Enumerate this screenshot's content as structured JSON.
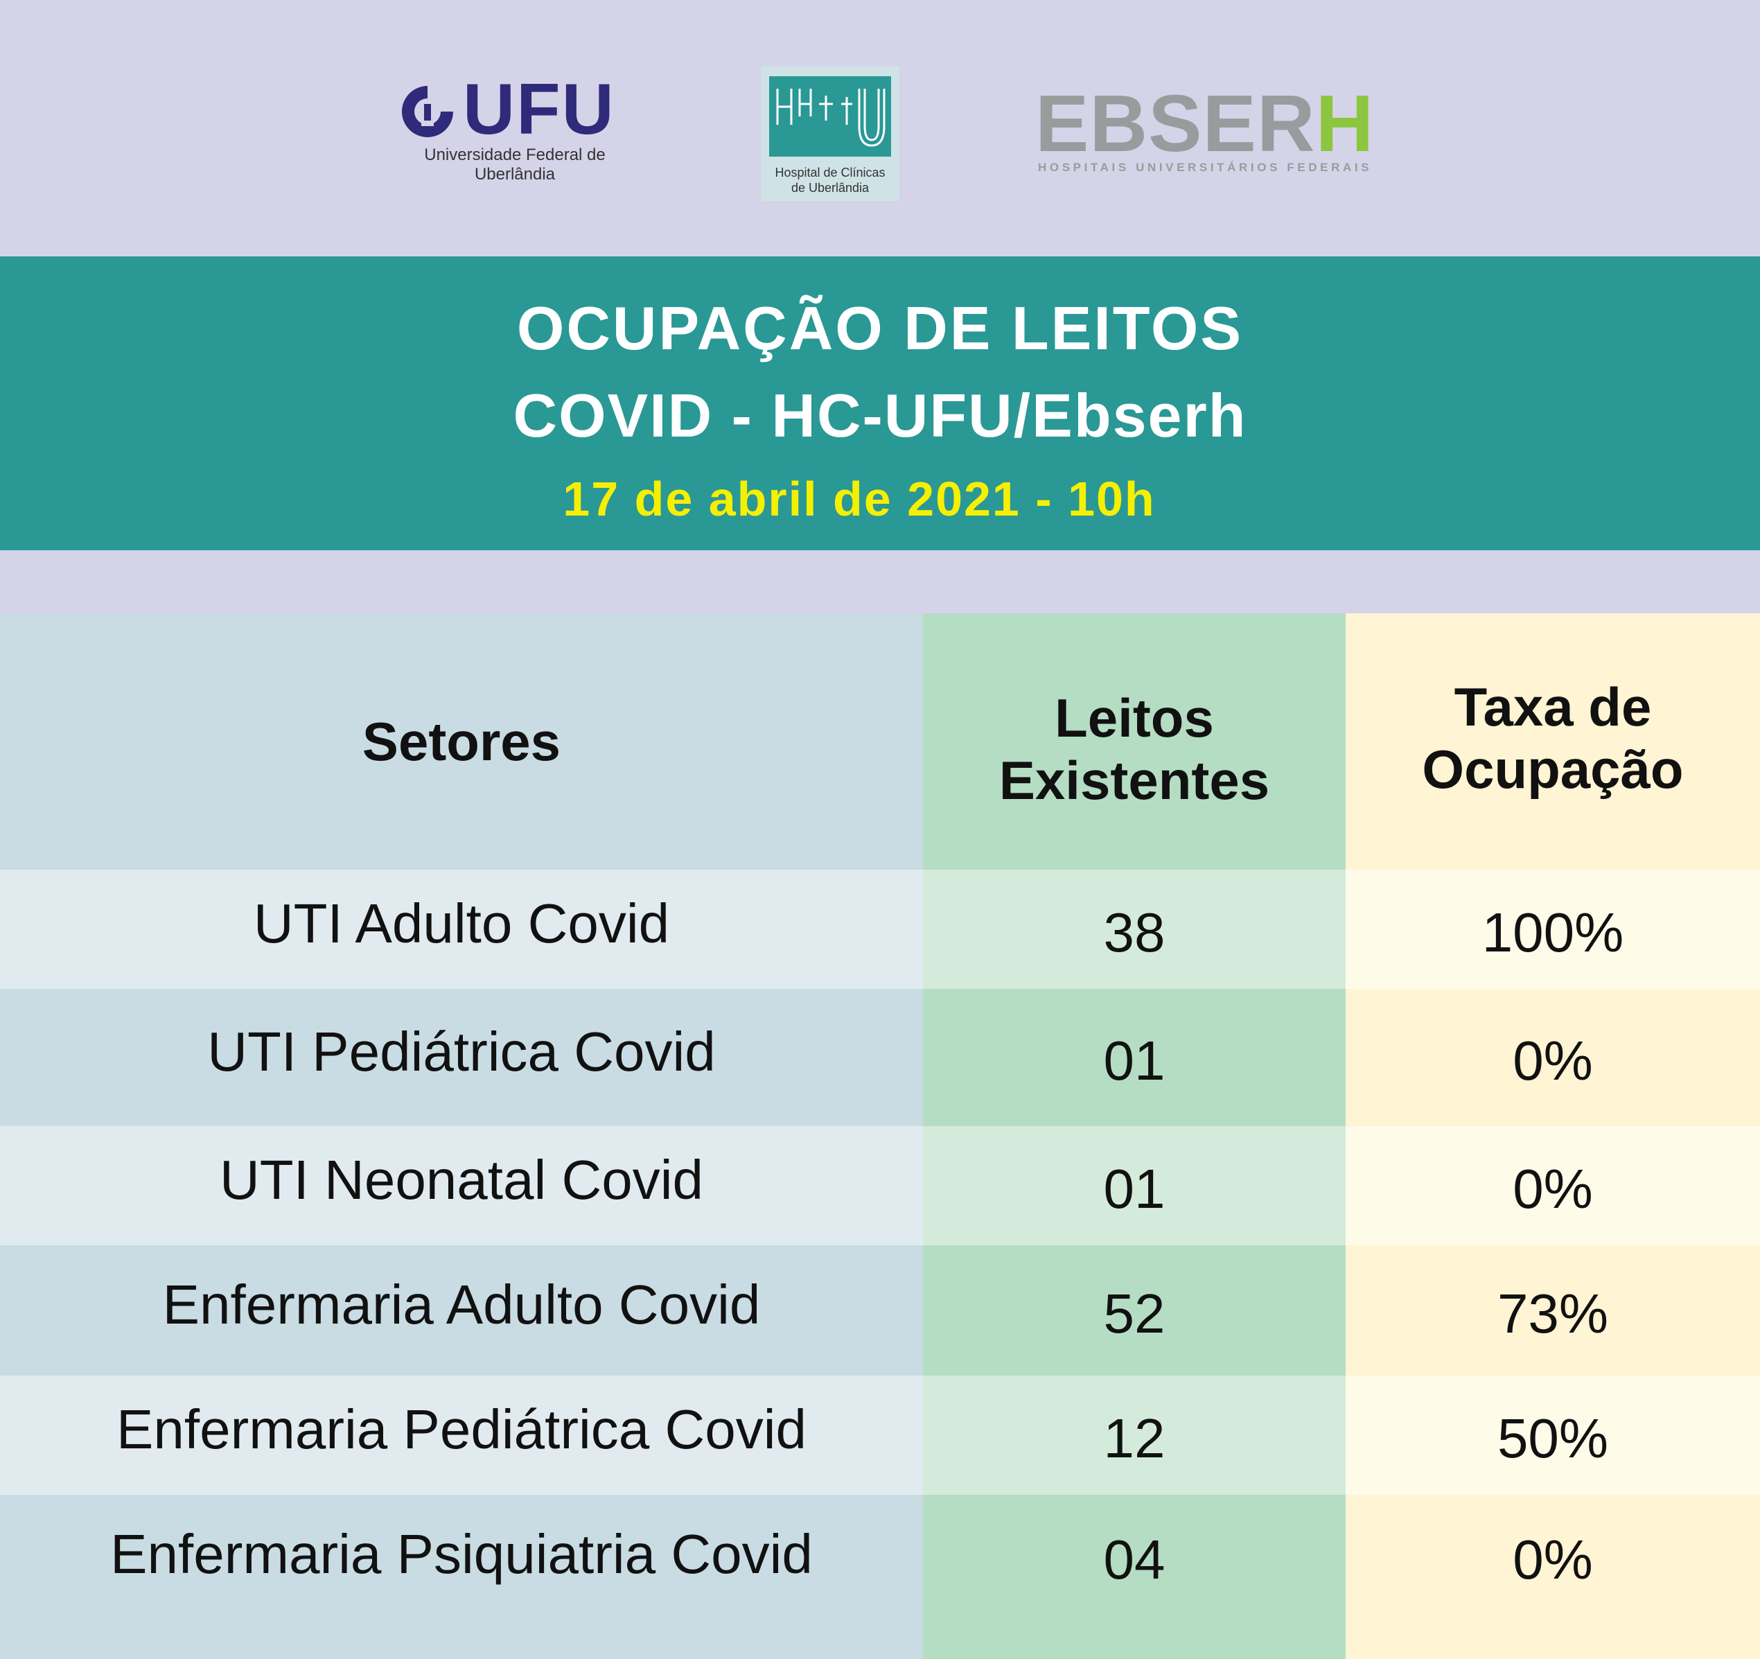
{
  "logos": {
    "ufu": {
      "name": "UFU",
      "subtitle_line1": "Universidade Federal de",
      "subtitle_line2": "Uberlândia"
    },
    "hcu": {
      "subtitle_line1": "Hospital de Clínicas",
      "subtitle_line2": "de Uberlândia"
    },
    "ebserh": {
      "name_main": "EBSER",
      "name_accent": "H",
      "subtitle": "HOSPITAIS UNIVERSITÁRIOS FEDERAIS"
    }
  },
  "title": {
    "line1": "OCUPAÇÃO DE LEITOS",
    "line2": "COVID - HC-UFU/Ebserh",
    "date": "17 de abril de 2021 - 10h"
  },
  "table": {
    "headers": {
      "setores": "Setores",
      "leitos_line1": "Leitos",
      "leitos_line2": "Existentes",
      "taxa_line1": "Taxa de",
      "taxa_line2": "Ocupação"
    },
    "rows": [
      {
        "setor": "UTI Adulto Covid",
        "leitos": "38",
        "taxa": "100%"
      },
      {
        "setor": "UTI Pediátrica Covid",
        "leitos": "01",
        "taxa": "0%"
      },
      {
        "setor": "UTI Neonatal Covid",
        "leitos": "01",
        "taxa": "0%"
      },
      {
        "setor": "Enfermaria Adulto Covid",
        "leitos": "52",
        "taxa": "73%"
      },
      {
        "setor": "Enfermaria Pediátrica Covid",
        "leitos": "12",
        "taxa": "50%"
      },
      {
        "setor": "Enfermaria Psiquiatria Covid",
        "leitos": "04",
        "taxa": "0%"
      }
    ]
  },
  "colors": {
    "teal": "#2a9895",
    "date_yellow": "#f5f000",
    "ufu_navy": "#2f2a79",
    "ebserh_gray": "#9a9b9d",
    "ebserh_green": "#8cc63f"
  }
}
